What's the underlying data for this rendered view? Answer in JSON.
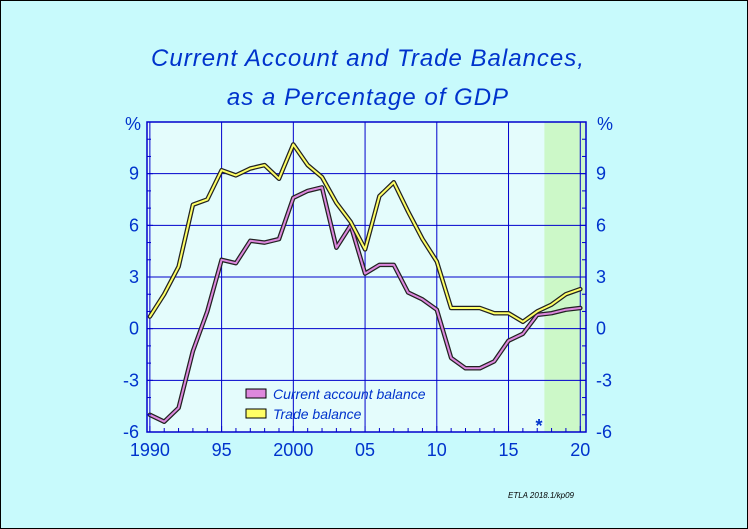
{
  "chart_data": {
    "type": "line",
    "title": "Current Account and Trade Balances,",
    "subtitle": "as a Percentage of GDP",
    "ylabel_left": "%",
    "ylabel_right": "%",
    "x_tick_labels": [
      "1990",
      "95",
      "2000",
      "05",
      "10",
      "15",
      "20"
    ],
    "x_tick_values": [
      1990,
      1995,
      2000,
      2005,
      2010,
      2015,
      2020
    ],
    "xlim": [
      1989.8,
      2020.4
    ],
    "ylim": [
      -6,
      12
    ],
    "y_tick_labels": [
      "-6",
      "-3",
      "0",
      "3",
      "6",
      "9"
    ],
    "y_tick_values": [
      -6,
      -3,
      0,
      3,
      6,
      9
    ],
    "forecast_start": 2017.5,
    "forecast_marker": "*",
    "x": [
      1990,
      1991,
      1992,
      1993,
      1994,
      1995,
      1996,
      1997,
      1998,
      1999,
      2000,
      2001,
      2002,
      2003,
      2004,
      2005,
      2006,
      2007,
      2008,
      2009,
      2010,
      2011,
      2012,
      2013,
      2014,
      2015,
      2016,
      2017,
      2018,
      2019,
      2020
    ],
    "series": [
      {
        "name": "Current account balance",
        "color": "#dd88dd",
        "values": [
          -5.0,
          -5.4,
          -4.6,
          -1.3,
          1.0,
          4.0,
          3.8,
          5.1,
          5.0,
          5.2,
          7.6,
          8.0,
          8.2,
          4.7,
          6.0,
          3.2,
          3.7,
          3.7,
          2.1,
          1.7,
          1.1,
          -1.7,
          -2.3,
          -2.3,
          -1.9,
          -0.7,
          -0.3,
          0.8,
          0.9,
          1.1,
          1.2
        ]
      },
      {
        "name": "Trade balance",
        "color": "#ffff66",
        "values": [
          0.7,
          2.0,
          3.6,
          7.2,
          7.5,
          9.2,
          8.9,
          9.3,
          9.5,
          8.7,
          10.7,
          9.5,
          8.8,
          7.3,
          6.2,
          4.6,
          7.7,
          8.5,
          6.8,
          5.2,
          3.9,
          1.2,
          1.2,
          1.2,
          0.9,
          0.9,
          0.4,
          1.0,
          1.4,
          2.0,
          2.3
        ]
      }
    ],
    "legend_position": "bottom-left inside",
    "grid": true,
    "colors": {
      "background": "#c8fafc",
      "plot_area": "#e4fcfc",
      "forecast_area": "#ccf8c8",
      "grid": "#0000cc",
      "text": "#0033cc"
    }
  },
  "footer": {
    "source": "ETLA 2018.1/kp09"
  }
}
